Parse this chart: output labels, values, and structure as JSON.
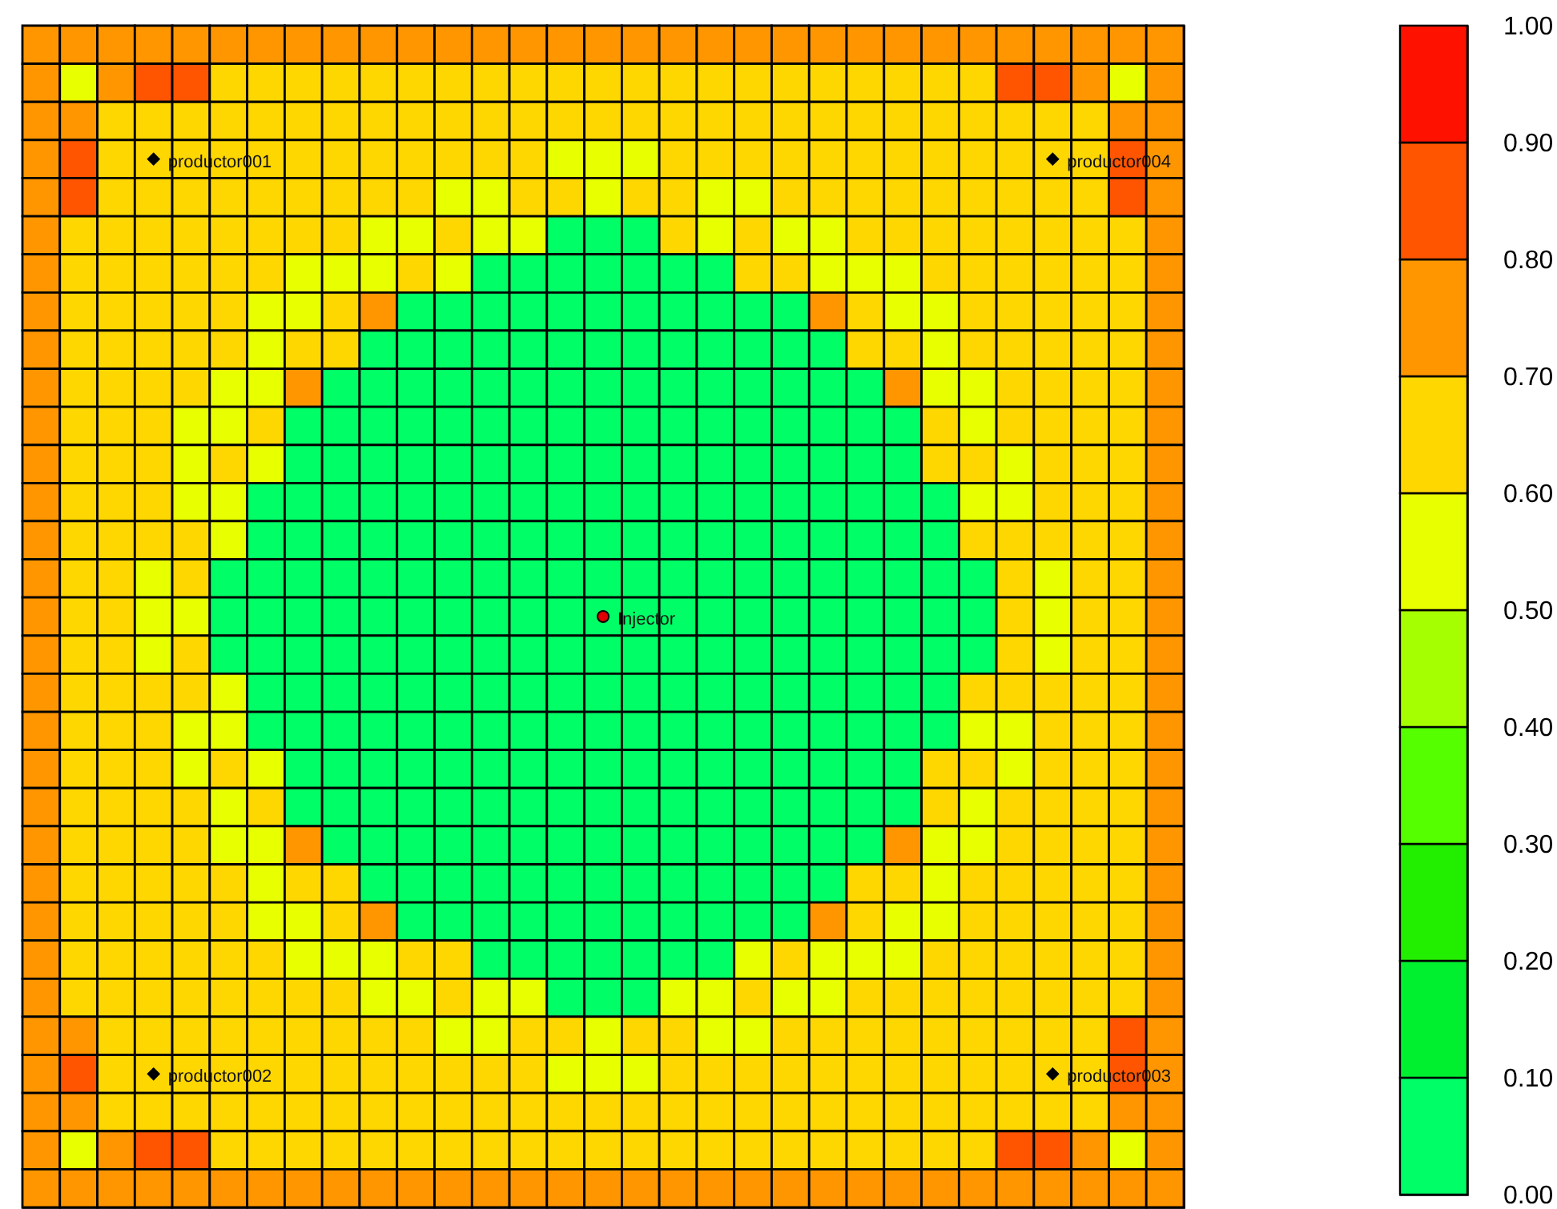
{
  "chart_data": {
    "type": "heatmap",
    "categories": [
      null,
      null,
      null,
      null,
      null,
      null,
      null,
      null,
      null,
      null,
      null,
      null,
      null,
      null,
      null,
      null,
      null,
      null,
      null,
      null,
      null,
      null,
      null,
      null,
      null,
      null,
      null,
      null,
      null,
      null,
      null
    ],
    "y_categories": [
      null,
      null,
      null,
      null,
      null,
      null,
      null,
      null,
      null,
      null,
      null,
      null,
      null,
      null,
      null,
      null,
      null,
      null,
      null,
      null,
      null,
      null,
      null,
      null,
      null,
      null,
      null,
      null,
      null,
      null,
      null
    ],
    "cells": [
      [
        0.75,
        0.75,
        0.75,
        0.75,
        0.75,
        0.75,
        0.75,
        0.75,
        0.75,
        0.75,
        0.75,
        0.75,
        0.75,
        0.75,
        0.75,
        0.75,
        0.75,
        0.75,
        0.75,
        0.75,
        0.75,
        0.75,
        0.75,
        0.75,
        0.75,
        0.75,
        0.75,
        0.75,
        0.75,
        0.75,
        0.75
      ],
      [
        0.75,
        0.55,
        0.75,
        0.85,
        0.85,
        0.65,
        0.65,
        0.65,
        0.65,
        0.65,
        0.65,
        0.65,
        0.65,
        0.65,
        0.65,
        0.65,
        0.65,
        0.65,
        0.65,
        0.65,
        0.65,
        0.65,
        0.65,
        0.65,
        0.65,
        0.65,
        0.85,
        0.85,
        0.75,
        0.55,
        0.75
      ],
      [
        0.75,
        0.75,
        0.65,
        0.65,
        0.65,
        0.65,
        0.65,
        0.65,
        0.65,
        0.65,
        0.65,
        0.65,
        0.65,
        0.65,
        0.65,
        0.65,
        0.65,
        0.65,
        0.65,
        0.65,
        0.65,
        0.65,
        0.65,
        0.65,
        0.65,
        0.65,
        0.65,
        0.65,
        0.65,
        0.75,
        0.75
      ],
      [
        0.75,
        0.85,
        0.65,
        0.65,
        0.65,
        0.65,
        0.65,
        0.65,
        0.65,
        0.65,
        0.65,
        0.65,
        0.65,
        0.65,
        0.55,
        0.55,
        0.55,
        0.65,
        0.65,
        0.65,
        0.65,
        0.65,
        0.65,
        0.65,
        0.65,
        0.65,
        0.65,
        0.65,
        0.65,
        0.85,
        0.75
      ],
      [
        0.75,
        0.85,
        0.65,
        0.65,
        0.65,
        0.65,
        0.65,
        0.65,
        0.65,
        0.65,
        0.65,
        0.55,
        0.55,
        0.65,
        0.65,
        0.55,
        0.65,
        0.65,
        0.55,
        0.55,
        0.65,
        0.65,
        0.65,
        0.65,
        0.65,
        0.65,
        0.65,
        0.65,
        0.65,
        0.85,
        0.75
      ],
      [
        0.75,
        0.65,
        0.65,
        0.65,
        0.65,
        0.65,
        0.65,
        0.65,
        0.65,
        0.55,
        0.55,
        0.65,
        0.55,
        0.55,
        0.05,
        0.05,
        0.05,
        0.65,
        0.55,
        0.65,
        0.55,
        0.55,
        0.65,
        0.65,
        0.65,
        0.65,
        0.65,
        0.65,
        0.65,
        0.65,
        0.75
      ],
      [
        0.75,
        0.65,
        0.65,
        0.65,
        0.65,
        0.65,
        0.65,
        0.55,
        0.55,
        0.55,
        0.65,
        0.55,
        0.05,
        0.05,
        0.05,
        0.05,
        0.05,
        0.05,
        0.05,
        0.65,
        0.65,
        0.55,
        0.55,
        0.55,
        0.65,
        0.65,
        0.65,
        0.65,
        0.65,
        0.65,
        0.75
      ],
      [
        0.75,
        0.65,
        0.65,
        0.65,
        0.65,
        0.65,
        0.55,
        0.55,
        0.65,
        0.75,
        0.05,
        0.05,
        0.05,
        0.05,
        0.05,
        0.05,
        0.05,
        0.05,
        0.05,
        0.05,
        0.05,
        0.75,
        0.65,
        0.55,
        0.55,
        0.65,
        0.65,
        0.65,
        0.65,
        0.65,
        0.75
      ],
      [
        0.75,
        0.65,
        0.65,
        0.65,
        0.65,
        0.65,
        0.55,
        0.65,
        0.65,
        0.05,
        0.05,
        0.05,
        0.05,
        0.05,
        0.05,
        0.05,
        0.05,
        0.05,
        0.05,
        0.05,
        0.05,
        0.05,
        0.65,
        0.65,
        0.55,
        0.65,
        0.65,
        0.65,
        0.65,
        0.65,
        0.75
      ],
      [
        0.75,
        0.65,
        0.65,
        0.65,
        0.65,
        0.55,
        0.55,
        0.75,
        0.05,
        0.05,
        0.05,
        0.05,
        0.05,
        0.05,
        0.05,
        0.05,
        0.05,
        0.05,
        0.05,
        0.05,
        0.05,
        0.05,
        0.05,
        0.75,
        0.55,
        0.55,
        0.65,
        0.65,
        0.65,
        0.65,
        0.75
      ],
      [
        0.75,
        0.65,
        0.65,
        0.65,
        0.55,
        0.55,
        0.65,
        0.05,
        0.05,
        0.05,
        0.05,
        0.05,
        0.05,
        0.05,
        0.05,
        0.05,
        0.05,
        0.05,
        0.05,
        0.05,
        0.05,
        0.05,
        0.05,
        0.05,
        0.65,
        0.55,
        0.65,
        0.65,
        0.65,
        0.65,
        0.75
      ],
      [
        0.75,
        0.65,
        0.65,
        0.65,
        0.55,
        0.65,
        0.55,
        0.05,
        0.05,
        0.05,
        0.05,
        0.05,
        0.05,
        0.05,
        0.05,
        0.05,
        0.05,
        0.05,
        0.05,
        0.05,
        0.05,
        0.05,
        0.05,
        0.05,
        0.65,
        0.65,
        0.55,
        0.65,
        0.65,
        0.65,
        0.75
      ],
      [
        0.75,
        0.65,
        0.65,
        0.65,
        0.55,
        0.55,
        0.05,
        0.05,
        0.05,
        0.05,
        0.05,
        0.05,
        0.05,
        0.05,
        0.05,
        0.05,
        0.05,
        0.05,
        0.05,
        0.05,
        0.05,
        0.05,
        0.05,
        0.05,
        0.05,
        0.55,
        0.55,
        0.65,
        0.65,
        0.65,
        0.75
      ],
      [
        0.75,
        0.65,
        0.65,
        0.65,
        0.65,
        0.55,
        0.05,
        0.05,
        0.05,
        0.05,
        0.05,
        0.05,
        0.05,
        0.05,
        0.05,
        0.05,
        0.05,
        0.05,
        0.05,
        0.05,
        0.05,
        0.05,
        0.05,
        0.05,
        0.05,
        0.65,
        0.65,
        0.65,
        0.65,
        0.65,
        0.75
      ],
      [
        0.75,
        0.65,
        0.65,
        0.55,
        0.65,
        0.05,
        0.05,
        0.05,
        0.05,
        0.05,
        0.05,
        0.05,
        0.05,
        0.05,
        0.05,
        0.05,
        0.05,
        0.05,
        0.05,
        0.05,
        0.05,
        0.05,
        0.05,
        0.05,
        0.05,
        0.05,
        0.65,
        0.55,
        0.65,
        0.65,
        0.75
      ],
      [
        0.75,
        0.65,
        0.65,
        0.55,
        0.55,
        0.05,
        0.05,
        0.05,
        0.05,
        0.05,
        0.05,
        0.05,
        0.05,
        0.05,
        0.05,
        0.05,
        0.05,
        0.05,
        0.05,
        0.05,
        0.05,
        0.05,
        0.05,
        0.05,
        0.05,
        0.05,
        0.65,
        0.55,
        0.65,
        0.65,
        0.75
      ],
      [
        0.75,
        0.65,
        0.65,
        0.55,
        0.65,
        0.05,
        0.05,
        0.05,
        0.05,
        0.05,
        0.05,
        0.05,
        0.05,
        0.05,
        0.05,
        0.05,
        0.05,
        0.05,
        0.05,
        0.05,
        0.05,
        0.05,
        0.05,
        0.05,
        0.05,
        0.05,
        0.65,
        0.55,
        0.65,
        0.65,
        0.75
      ],
      [
        0.75,
        0.65,
        0.65,
        0.65,
        0.65,
        0.55,
        0.05,
        0.05,
        0.05,
        0.05,
        0.05,
        0.05,
        0.05,
        0.05,
        0.05,
        0.05,
        0.05,
        0.05,
        0.05,
        0.05,
        0.05,
        0.05,
        0.05,
        0.05,
        0.05,
        0.65,
        0.65,
        0.65,
        0.65,
        0.65,
        0.75
      ],
      [
        0.75,
        0.65,
        0.65,
        0.65,
        0.55,
        0.55,
        0.05,
        0.05,
        0.05,
        0.05,
        0.05,
        0.05,
        0.05,
        0.05,
        0.05,
        0.05,
        0.05,
        0.05,
        0.05,
        0.05,
        0.05,
        0.05,
        0.05,
        0.05,
        0.05,
        0.55,
        0.55,
        0.65,
        0.65,
        0.65,
        0.75
      ],
      [
        0.75,
        0.65,
        0.65,
        0.65,
        0.55,
        0.65,
        0.55,
        0.05,
        0.05,
        0.05,
        0.05,
        0.05,
        0.05,
        0.05,
        0.05,
        0.05,
        0.05,
        0.05,
        0.05,
        0.05,
        0.05,
        0.05,
        0.05,
        0.05,
        0.65,
        0.65,
        0.55,
        0.65,
        0.65,
        0.65,
        0.75
      ],
      [
        0.75,
        0.65,
        0.65,
        0.65,
        0.65,
        0.55,
        0.65,
        0.05,
        0.05,
        0.05,
        0.05,
        0.05,
        0.05,
        0.05,
        0.05,
        0.05,
        0.05,
        0.05,
        0.05,
        0.05,
        0.05,
        0.05,
        0.05,
        0.05,
        0.65,
        0.55,
        0.65,
        0.65,
        0.65,
        0.65,
        0.75
      ],
      [
        0.75,
        0.65,
        0.65,
        0.65,
        0.65,
        0.55,
        0.55,
        0.75,
        0.05,
        0.05,
        0.05,
        0.05,
        0.05,
        0.05,
        0.05,
        0.05,
        0.05,
        0.05,
        0.05,
        0.05,
        0.05,
        0.05,
        0.05,
        0.75,
        0.55,
        0.55,
        0.65,
        0.65,
        0.65,
        0.65,
        0.75
      ],
      [
        0.75,
        0.65,
        0.65,
        0.65,
        0.65,
        0.65,
        0.55,
        0.65,
        0.65,
        0.05,
        0.05,
        0.05,
        0.05,
        0.05,
        0.05,
        0.05,
        0.05,
        0.05,
        0.05,
        0.05,
        0.05,
        0.05,
        0.65,
        0.65,
        0.55,
        0.65,
        0.65,
        0.65,
        0.65,
        0.65,
        0.75
      ],
      [
        0.75,
        0.65,
        0.65,
        0.65,
        0.65,
        0.65,
        0.55,
        0.55,
        0.65,
        0.75,
        0.05,
        0.05,
        0.05,
        0.05,
        0.05,
        0.05,
        0.05,
        0.05,
        0.05,
        0.05,
        0.05,
        0.75,
        0.65,
        0.55,
        0.55,
        0.65,
        0.65,
        0.65,
        0.65,
        0.65,
        0.75
      ],
      [
        0.75,
        0.65,
        0.65,
        0.65,
        0.65,
        0.65,
        0.65,
        0.55,
        0.55,
        0.55,
        0.65,
        0.65,
        0.05,
        0.05,
        0.05,
        0.05,
        0.05,
        0.05,
        0.05,
        0.55,
        0.65,
        0.55,
        0.55,
        0.55,
        0.65,
        0.65,
        0.65,
        0.65,
        0.65,
        0.65,
        0.75
      ],
      [
        0.75,
        0.65,
        0.65,
        0.65,
        0.65,
        0.65,
        0.65,
        0.65,
        0.65,
        0.55,
        0.55,
        0.65,
        0.55,
        0.55,
        0.05,
        0.05,
        0.05,
        0.55,
        0.55,
        0.65,
        0.55,
        0.55,
        0.65,
        0.65,
        0.65,
        0.65,
        0.65,
        0.65,
        0.65,
        0.65,
        0.75
      ],
      [
        0.75,
        0.75,
        0.65,
        0.65,
        0.65,
        0.65,
        0.65,
        0.65,
        0.65,
        0.65,
        0.65,
        0.55,
        0.55,
        0.65,
        0.65,
        0.55,
        0.65,
        0.65,
        0.55,
        0.55,
        0.65,
        0.65,
        0.65,
        0.65,
        0.65,
        0.65,
        0.65,
        0.65,
        0.65,
        0.85,
        0.75
      ],
      [
        0.75,
        0.85,
        0.65,
        0.65,
        0.65,
        0.65,
        0.65,
        0.65,
        0.65,
        0.65,
        0.65,
        0.65,
        0.65,
        0.65,
        0.55,
        0.55,
        0.55,
        0.65,
        0.65,
        0.65,
        0.65,
        0.65,
        0.65,
        0.65,
        0.65,
        0.65,
        0.65,
        0.65,
        0.65,
        0.85,
        0.75
      ],
      [
        0.75,
        0.75,
        0.65,
        0.65,
        0.65,
        0.65,
        0.65,
        0.65,
        0.65,
        0.65,
        0.65,
        0.65,
        0.65,
        0.65,
        0.65,
        0.65,
        0.65,
        0.65,
        0.65,
        0.65,
        0.65,
        0.65,
        0.65,
        0.65,
        0.65,
        0.65,
        0.65,
        0.65,
        0.65,
        0.75,
        0.75
      ],
      [
        0.75,
        0.55,
        0.75,
        0.85,
        0.85,
        0.65,
        0.65,
        0.65,
        0.65,
        0.65,
        0.65,
        0.65,
        0.65,
        0.65,
        0.65,
        0.65,
        0.65,
        0.65,
        0.65,
        0.65,
        0.65,
        0.65,
        0.65,
        0.65,
        0.65,
        0.65,
        0.85,
        0.85,
        0.75,
        0.55,
        0.75
      ],
      [
        0.75,
        0.75,
        0.75,
        0.75,
        0.75,
        0.75,
        0.75,
        0.75,
        0.75,
        0.75,
        0.75,
        0.75,
        0.75,
        0.75,
        0.75,
        0.75,
        0.75,
        0.75,
        0.75,
        0.75,
        0.75,
        0.75,
        0.75,
        0.75,
        0.75,
        0.75,
        0.75,
        0.75,
        0.75,
        0.75,
        0.75
      ]
    ],
    "clim": [
      0,
      1
    ],
    "cticks": [
      {
        "value": 0,
        "label": "0.00"
      },
      {
        "value": 0.1,
        "label": "0.10"
      },
      {
        "value": 0.2,
        "label": "0.20"
      },
      {
        "value": 0.3,
        "label": "0.30"
      },
      {
        "value": 0.4,
        "label": "0.40"
      },
      {
        "value": 0.5,
        "label": "0.50"
      },
      {
        "value": 0.6,
        "label": "0.60"
      },
      {
        "value": 0.7,
        "label": "0.70"
      },
      {
        "value": 0.8,
        "label": "0.80"
      },
      {
        "value": 0.9,
        "label": "0.90"
      },
      {
        "value": 1,
        "label": "1.00"
      }
    ],
    "colors": [
      "#00ff66",
      "#00f030",
      "#22ee00",
      "#55ff00",
      "#a6ff00",
      "#e8ff00",
      "#ffd700",
      "#ff9600",
      "#ff5500",
      "#ff1100"
    ],
    "annotations": [
      "productor001",
      "productor004",
      "Injector",
      "productor002",
      "productor003"
    ]
  }
}
